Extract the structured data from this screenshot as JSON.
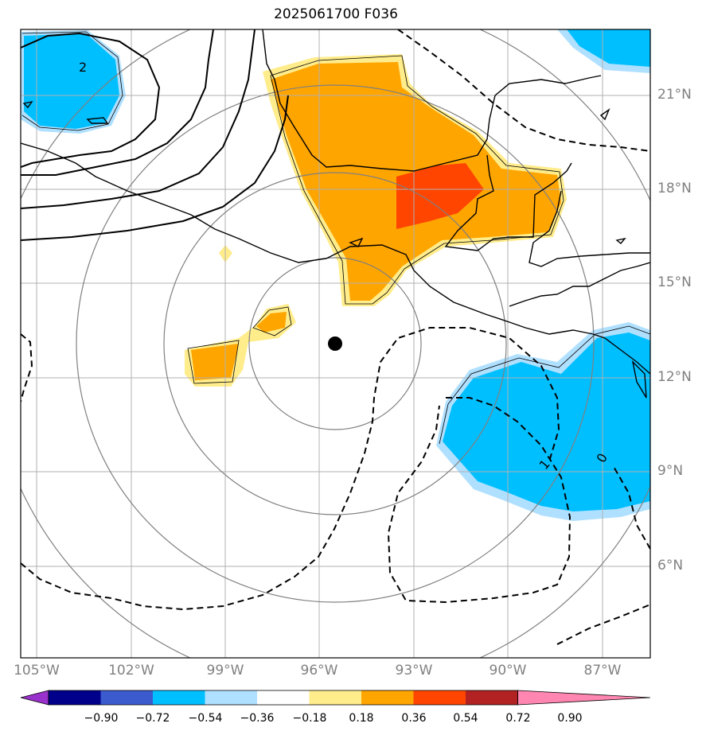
{
  "title": "2025061700 F036",
  "lat_labels": [
    "21°N",
    "18°N",
    "15°N",
    "12°N",
    "9°N",
    "6°N"
  ],
  "lon_labels": [
    "105°W",
    "102°W",
    "99°W",
    "96°W",
    "93°W",
    "90°W",
    "87°W"
  ],
  "contour_labels": [
    "2",
    "1",
    "0"
  ],
  "colorbar": {
    "ticks": [
      "−0.90",
      "−0.72",
      "−0.54",
      "−0.36",
      "−0.18",
      "0.18",
      "0.36",
      "0.54",
      "0.72",
      "0.90"
    ],
    "colors": [
      "#9932cc",
      "#00008b",
      "#3b5bcf",
      "#00bfff",
      "#b0e0ff",
      "#ffffff",
      "#ffec8b",
      "#ffa500",
      "#ff4500",
      "#b22222",
      "#ff86b0"
    ]
  },
  "center_marker": {
    "lon": -95.5,
    "lat": 13.0
  }
}
